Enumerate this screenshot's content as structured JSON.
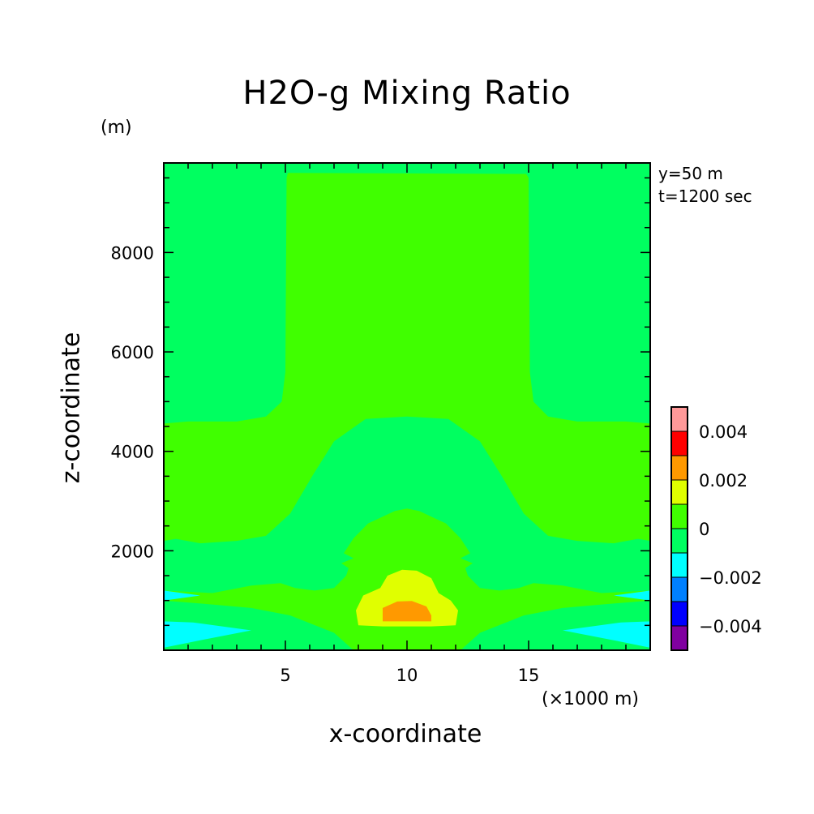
{
  "chart_data": {
    "type": "heatmap",
    "title": "H2O-g Mixing Ratio",
    "xlabel": "x-coordinate",
    "ylabel": "z-coordinate",
    "x_unit": "(×1000 m)",
    "z_unit": "(m)",
    "annotations": [
      "y=50 m",
      "t=1200 sec"
    ],
    "xlim": [
      0,
      20
    ],
    "ylim": [
      0,
      9800
    ],
    "x_ticks": [
      5,
      10,
      15
    ],
    "y_ticks": [
      2000,
      4000,
      6000,
      8000
    ],
    "colorbar": {
      "levels": [
        -0.005,
        -0.004,
        -0.003,
        -0.002,
        -0.001,
        0,
        0.001,
        0.002,
        0.003,
        0.004,
        0.005
      ],
      "labels": [
        -0.004,
        -0.002,
        0,
        0.002,
        0.004
      ],
      "label_text": [
        "−0.004",
        "−0.002",
        "0",
        "0.002",
        "0.004"
      ],
      "colors": [
        "#8000a0",
        "#0000ff",
        "#0080ff",
        "#00ffff",
        "#00ff60",
        "#40ff00",
        "#e0ff00",
        "#ff9900",
        "#ff0000",
        "#ff9999"
      ]
    },
    "background_level": "-0.001 to 0",
    "regions": [
      {
        "name": "plume",
        "level": "0 to 0.001",
        "x_range": [
          5.1,
          15.0
        ],
        "z_top": 9600
      },
      {
        "name": "lower-layer",
        "level": "0 to 0.001",
        "x_range": [
          0,
          20
        ],
        "z_range": [
          2200,
          4600
        ]
      },
      {
        "name": "moist-core",
        "level": "0.001 to 0.002",
        "x_range": [
          7.9,
          12.2
        ],
        "z_range": [
          500,
          1600
        ]
      },
      {
        "name": "peak-core",
        "level": "0.002 to 0.003",
        "x_range": [
          9.0,
          11.0
        ],
        "z_range": [
          580,
          1000
        ]
      },
      {
        "name": "dry-edges",
        "level": "-0.002 to -0.001",
        "x_range": [
          [
            0,
            3.6
          ],
          [
            16.4,
            20
          ]
        ],
        "z_range": [
          0,
          1200
        ]
      }
    ]
  }
}
